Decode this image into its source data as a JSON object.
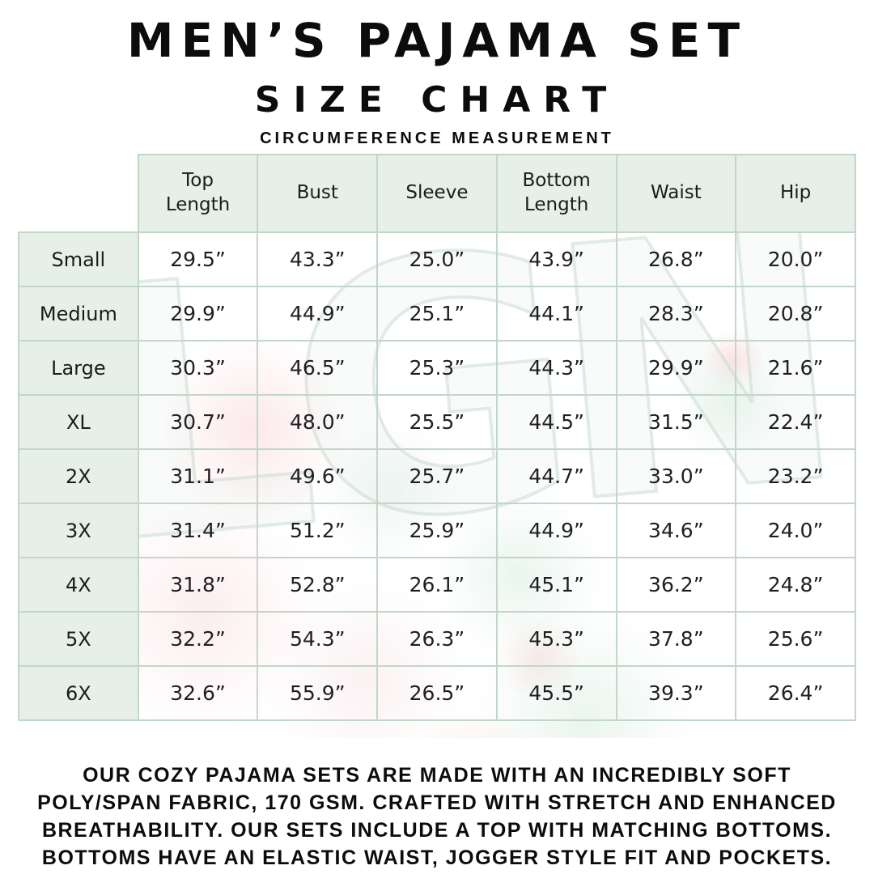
{
  "page": {
    "title": "MEN’S PAJAMA SET",
    "subtitle": "SIZE CHART",
    "measurement_label": "CIRCUMFERENCE MEASUREMENT"
  },
  "watermark": {
    "text": "LGN"
  },
  "table": {
    "columns": [
      "Top\nLength",
      "Bust",
      "Sleeve",
      "Bottom\nLength",
      "Waist",
      "Hip"
    ],
    "column_slugs": [
      "top-length",
      "bust",
      "sleeve",
      "bottom-length",
      "waist",
      "hip"
    ],
    "rows": [
      {
        "label": "Small",
        "values": [
          "29.5”",
          "43.3”",
          "25.0”",
          "43.9”",
          "26.8”",
          "20.0”"
        ]
      },
      {
        "label": "Medium",
        "values": [
          "29.9”",
          "44.9”",
          "25.1”",
          "44.1”",
          "28.3”",
          "20.8”"
        ]
      },
      {
        "label": "Large",
        "values": [
          "30.3”",
          "46.5”",
          "25.3”",
          "44.3”",
          "29.9”",
          "21.6”"
        ]
      },
      {
        "label": "XL",
        "values": [
          "30.7”",
          "48.0”",
          "25.5”",
          "44.5”",
          "31.5”",
          "22.4”"
        ]
      },
      {
        "label": "2X",
        "values": [
          "31.1”",
          "49.6”",
          "25.7”",
          "44.7”",
          "33.0”",
          "23.2”"
        ]
      },
      {
        "label": "3X",
        "values": [
          "31.4”",
          "51.2”",
          "25.9”",
          "44.9”",
          "34.6”",
          "24.0”"
        ]
      },
      {
        "label": "4X",
        "values": [
          "31.8”",
          "52.8”",
          "26.1”",
          "45.1”",
          "36.2”",
          "24.8”"
        ]
      },
      {
        "label": "5X",
        "values": [
          "32.2”",
          "54.3”",
          "26.3”",
          "45.3”",
          "37.8”",
          "25.6”"
        ]
      },
      {
        "label": "6X",
        "values": [
          "32.6”",
          "55.9”",
          "26.5”",
          "45.5”",
          "39.3”",
          "26.4”"
        ]
      }
    ]
  },
  "footer": {
    "lines": [
      "OUR COZY PAJAMA SETS ARE MADE WITH AN INCREDIBLY SOFT",
      "POLY/SPAN FABRIC, 170 GSM. CRAFTED WITH STRETCH AND ENHANCED",
      "BREATHABILITY. OUR SETS INCLUDE A TOP WITH MATCHING BOTTOMS.",
      "BOTTOMS HAVE AN ELASTIC WAIST, JOGGER STYLE FIT AND POCKETS."
    ]
  },
  "colors": {
    "cell_background": "#e7efe9",
    "table_border": "#c2d6c9",
    "text": "#0c0c0c"
  }
}
